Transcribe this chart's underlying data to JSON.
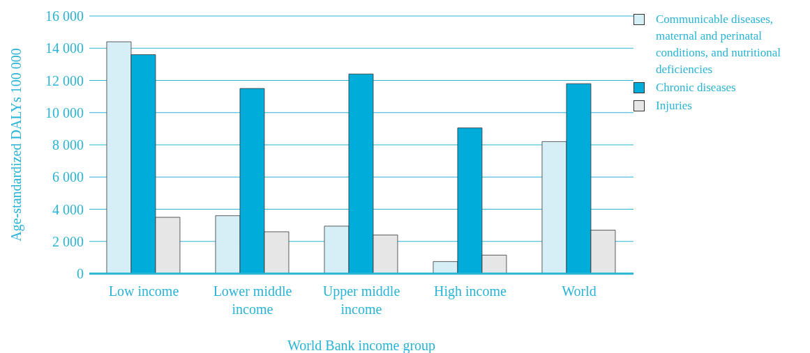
{
  "chart_data": {
    "type": "bar",
    "xlabel": "World Bank income group",
    "ylabel": "Age-standardized DALYs 100 000",
    "categories": [
      "Low income",
      "Lower middle income",
      "Upper middle income",
      "High income",
      "World"
    ],
    "series": [
      {
        "name": "Communicable diseases, maternal and perinatal conditions, and nutritional deficiencies",
        "color": "#d6eff7",
        "values": [
          14400,
          3600,
          2950,
          750,
          8200
        ]
      },
      {
        "name": "Chronic diseases",
        "color": "#00acd9",
        "values": [
          13600,
          11500,
          12400,
          9050,
          11800
        ]
      },
      {
        "name": "Injuries",
        "color": "#e6e6e6",
        "values": [
          3500,
          2600,
          2400,
          1150,
          2700
        ]
      }
    ],
    "ylim": [
      0,
      16000
    ],
    "yticks": [
      {
        "value": 0,
        "label": "0"
      },
      {
        "value": 2000,
        "label": "2 000"
      },
      {
        "value": 4000,
        "label": "4 000"
      },
      {
        "value": 6000,
        "label": "6 000"
      },
      {
        "value": 8000,
        "label": "8 000"
      },
      {
        "value": 10000,
        "label": "10 000"
      },
      {
        "value": 12000,
        "label": "12 000"
      },
      {
        "value": 14000,
        "label": "14 000"
      },
      {
        "value": 16000,
        "label": "16 000"
      }
    ],
    "grid": "y",
    "legend": "top right"
  }
}
